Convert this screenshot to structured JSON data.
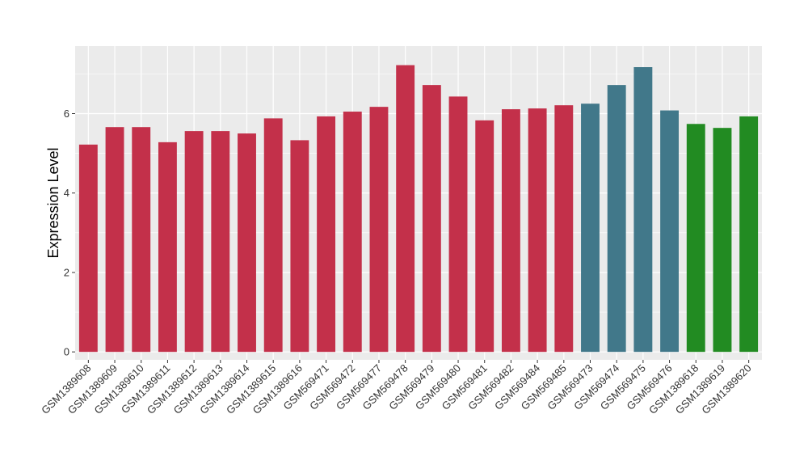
{
  "chart_data": {
    "type": "bar",
    "title": "",
    "xlabel": "",
    "ylabel": "Expression Level",
    "ylim": [
      -0.2,
      7.7
    ],
    "yticks": [
      0,
      2,
      4,
      6
    ],
    "grid": true,
    "legend": "none",
    "categories": [
      "GSM1389608",
      "GSM1389609",
      "GSM1389610",
      "GSM1389611",
      "GSM1389612",
      "GSM1389613",
      "GSM1389614",
      "GSM1389615",
      "GSM1389616",
      "GSM569471",
      "GSM569472",
      "GSM569477",
      "GSM569478",
      "GSM569479",
      "GSM569480",
      "GSM569481",
      "GSM569482",
      "GSM569484",
      "GSM569485",
      "GSM569473",
      "GSM569474",
      "GSM569475",
      "GSM569476",
      "GSM1389618",
      "GSM1389619",
      "GSM1389620"
    ],
    "values": [
      5.22,
      5.66,
      5.66,
      5.28,
      5.56,
      5.56,
      5.5,
      5.88,
      5.33,
      5.93,
      6.05,
      6.17,
      7.22,
      6.72,
      6.43,
      5.83,
      6.11,
      6.13,
      6.21,
      6.25,
      6.72,
      7.17,
      6.08,
      5.74,
      5.64,
      5.93
    ],
    "groups": [
      0,
      0,
      0,
      0,
      0,
      0,
      0,
      0,
      0,
      0,
      0,
      0,
      0,
      0,
      0,
      0,
      0,
      0,
      0,
      1,
      1,
      1,
      1,
      2,
      2,
      2
    ],
    "group_colors": [
      "#c3304a",
      "#41788a",
      "#228b22"
    ],
    "panel_color": "#ebebeb",
    "grid_color": "#ffffff"
  }
}
